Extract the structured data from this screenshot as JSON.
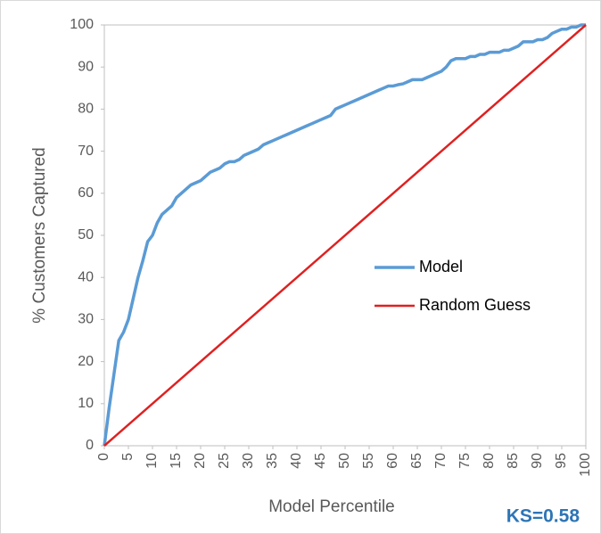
{
  "chart_data": {
    "type": "line",
    "xlabel": "Model Percentile",
    "ylabel": "% Customers Captured",
    "annotation": "KS=0.58",
    "xlim": [
      0,
      100
    ],
    "ylim": [
      0,
      100
    ],
    "xticks": [
      0,
      5,
      10,
      15,
      20,
      25,
      30,
      35,
      40,
      45,
      50,
      55,
      60,
      65,
      70,
      75,
      80,
      85,
      90,
      95,
      100
    ],
    "yticks": [
      0,
      10,
      20,
      30,
      40,
      50,
      60,
      70,
      80,
      90,
      100
    ],
    "grid": false,
    "legend": "center-right",
    "series": [
      {
        "name": "Model",
        "color": "#5b9bd5",
        "x": [
          0,
          1,
          2,
          3,
          4,
          5,
          6,
          7,
          8,
          9,
          10,
          11,
          12,
          13,
          14,
          15,
          16,
          17,
          18,
          19,
          20,
          21,
          22,
          23,
          24,
          25,
          26,
          27,
          28,
          29,
          30,
          31,
          32,
          33,
          34,
          35,
          36,
          37,
          38,
          39,
          40,
          41,
          42,
          43,
          44,
          45,
          46,
          47,
          48,
          49,
          50,
          51,
          52,
          53,
          54,
          55,
          56,
          57,
          58,
          59,
          60,
          61,
          62,
          63,
          64,
          65,
          66,
          67,
          68,
          69,
          70,
          71,
          72,
          73,
          74,
          75,
          76,
          77,
          78,
          79,
          80,
          81,
          82,
          83,
          84,
          85,
          86,
          87,
          88,
          89,
          90,
          91,
          92,
          93,
          94,
          95,
          96,
          97,
          98,
          99,
          100
        ],
        "values": [
          0,
          9,
          17,
          25,
          27,
          30,
          35,
          40,
          44,
          48.5,
          50,
          53,
          55,
          56,
          57,
          59,
          60,
          61,
          62,
          62.5,
          63,
          64,
          65,
          65.5,
          66,
          67,
          67.5,
          67.5,
          68,
          69,
          69.5,
          70,
          70.5,
          71.5,
          72,
          72.5,
          73,
          73.5,
          74,
          74.5,
          75,
          75.5,
          76,
          76.5,
          77,
          77.5,
          78,
          78.5,
          80,
          80.5,
          81,
          81.5,
          82,
          82.5,
          83,
          83.5,
          84,
          84.5,
          85,
          85.5,
          85.5,
          85.8,
          86,
          86.5,
          87,
          87,
          87,
          87.5,
          88,
          88.5,
          89,
          90,
          91.5,
          92,
          92,
          92,
          92.5,
          92.5,
          93,
          93,
          93.5,
          93.5,
          93.5,
          94,
          94,
          94.5,
          95,
          96,
          96,
          96,
          96.5,
          96.5,
          97,
          98,
          98.5,
          99,
          99,
          99.5,
          99.5,
          100,
          100
        ]
      },
      {
        "name": "Random Guess",
        "color": "#e02020",
        "x": [
          0,
          100
        ],
        "values": [
          0,
          100
        ]
      }
    ]
  }
}
